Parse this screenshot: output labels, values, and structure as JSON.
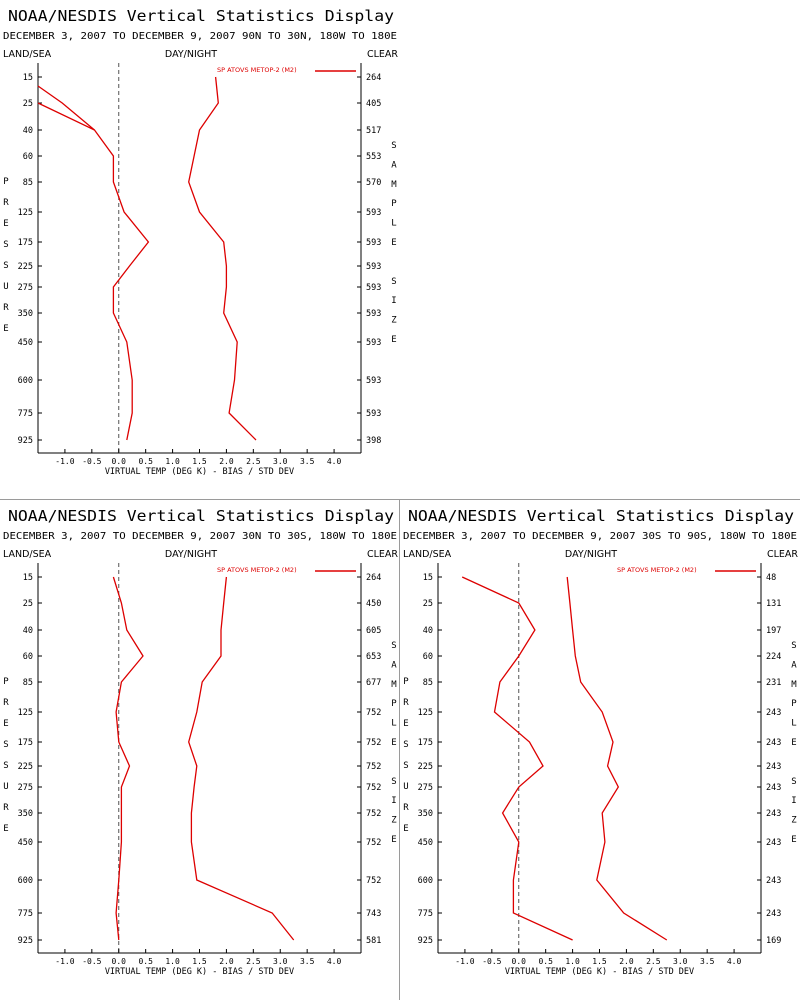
{
  "chart_data": [
    {
      "type": "line",
      "title": "NOAA/NESDIS Vertical Statistics Display",
      "subtitle": "DECEMBER 3, 2007 TO DECEMBER 9, 2007 90N TO 30N, 180W TO 180E",
      "left_header": "LAND/SEA",
      "center_header": "DAY/NIGHT",
      "right_header": "CLEAR",
      "ylabel": "PRESSURE",
      "right_label": "SAMPLE SIZE",
      "xlabel": "VIRTUAL TEMP (DEG K) - BIAS / STD DEV",
      "legend": "SP ATOVS METOP-2 (M2)",
      "xlim": [
        -1.5,
        4.5
      ],
      "x_ticks": [
        "-1.0",
        "-0.5",
        "0.0",
        "0.5",
        "1.0",
        "1.5",
        "2.0",
        "2.5",
        "3.0",
        "3.5",
        "4.0"
      ],
      "pressure_levels": [
        "15",
        "25",
        "40",
        "60",
        "85",
        "125",
        "175",
        "225",
        "275",
        "350",
        "450",
        "600",
        "775",
        "925"
      ],
      "sample_sizes": [
        "264",
        "405",
        "517",
        "553",
        "570",
        "593",
        "593",
        "593",
        "593",
        "593",
        "593",
        "593",
        "593",
        "398"
      ],
      "series": [
        {
          "values": [
            null,
            -1.5,
            -0.45,
            -0.1,
            -0.1,
            0.1,
            0.55,
            0.2,
            -0.1,
            -0.1,
            0.15,
            0.25,
            0.25,
            0.15
          ]
        },
        {
          "values": [
            1.8,
            1.85,
            1.5,
            1.4,
            1.3,
            1.5,
            1.95,
            2.0,
            2.0,
            1.95,
            2.2,
            2.15,
            2.05,
            2.55
          ]
        }
      ],
      "extra_segment": {
        "x": [
          -1.5,
          -1.05
        ],
        "y": [
          20,
          25
        ]
      }
    },
    {
      "type": "line",
      "title": "NOAA/NESDIS Vertical Statistics Display",
      "subtitle": "DECEMBER 3, 2007 TO DECEMBER 9, 2007 30N TO 30S, 180W TO 180E",
      "left_header": "LAND/SEA",
      "center_header": "DAY/NIGHT",
      "right_header": "CLEAR",
      "ylabel": "PRESSURE",
      "right_label": "SAMPLE SIZE",
      "xlabel": "VIRTUAL TEMP (DEG K) - BIAS / STD DEV",
      "legend": "SP ATOVS METOP-2 (M2)",
      "xlim": [
        -1.5,
        4.5
      ],
      "x_ticks": [
        "-1.0",
        "-0.5",
        "0.0",
        "0.5",
        "1.0",
        "1.5",
        "2.0",
        "2.5",
        "3.0",
        "3.5",
        "4.0"
      ],
      "pressure_levels": [
        "15",
        "25",
        "40",
        "60",
        "85",
        "125",
        "175",
        "225",
        "275",
        "350",
        "450",
        "600",
        "775",
        "925"
      ],
      "sample_sizes": [
        "264",
        "450",
        "605",
        "653",
        "677",
        "752",
        "752",
        "752",
        "752",
        "752",
        "752",
        "752",
        "743",
        "581"
      ],
      "series": [
        {
          "values": [
            -0.1,
            0.05,
            0.15,
            0.45,
            0.05,
            -0.05,
            0.0,
            0.2,
            0.05,
            0.05,
            0.05,
            0.0,
            -0.05,
            0.0
          ]
        },
        {
          "values": [
            2.0,
            1.95,
            1.9,
            1.9,
            1.55,
            1.45,
            1.3,
            1.45,
            1.4,
            1.35,
            1.35,
            1.45,
            2.85,
            3.25
          ]
        }
      ]
    },
    {
      "type": "line",
      "title": "NOAA/NESDIS Vertical Statistics Display",
      "subtitle": "DECEMBER 3, 2007 TO DECEMBER 9, 2007 30S TO 90S, 180W TO 180E",
      "left_header": "LAND/SEA",
      "center_header": "DAY/NIGHT",
      "right_header": "CLEAR",
      "ylabel": "PRESSURE",
      "right_label": "SAMPLE SIZE",
      "xlabel": "VIRTUAL TEMP (DEG K) - BIAS / STD DEV",
      "legend": "SP ATOVS METOP-2 (M2)",
      "xlim": [
        -1.5,
        4.5
      ],
      "x_ticks": [
        "-1.0",
        "-0.5",
        "0.0",
        "0.5",
        "1.0",
        "1.5",
        "2.0",
        "2.5",
        "3.0",
        "3.5",
        "4.0"
      ],
      "pressure_levels": [
        "15",
        "25",
        "40",
        "60",
        "85",
        "125",
        "175",
        "225",
        "275",
        "350",
        "450",
        "600",
        "775",
        "925"
      ],
      "sample_sizes": [
        "48",
        "131",
        "197",
        "224",
        "231",
        "243",
        "243",
        "243",
        "243",
        "243",
        "243",
        "243",
        "243",
        "169"
      ],
      "series": [
        {
          "values": [
            -1.05,
            0.0,
            0.3,
            0.0,
            -0.35,
            -0.45,
            0.2,
            0.45,
            0.0,
            -0.3,
            0.0,
            -0.1,
            -0.1,
            1.0
          ]
        },
        {
          "values": [
            0.9,
            0.95,
            1.0,
            1.05,
            1.15,
            1.55,
            1.75,
            1.65,
            1.85,
            1.55,
            1.6,
            1.45,
            1.95,
            2.75
          ]
        }
      ]
    }
  ],
  "style": {
    "line_color": "#dd0000",
    "axis_color": "#000000",
    "zero_line_color": "#555555",
    "divider_color": "#9a9a9a"
  }
}
